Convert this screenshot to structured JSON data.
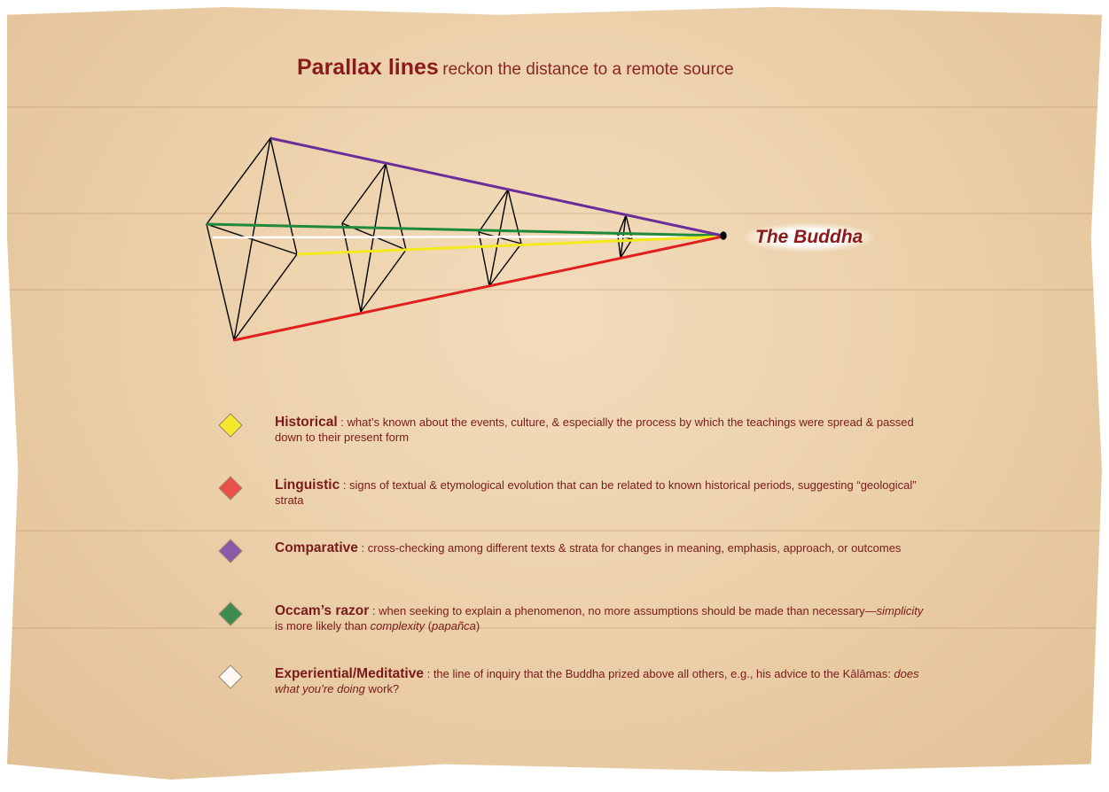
{
  "title": {
    "bold": "Parallax lines",
    "rest": "reckon the distance to a remote source"
  },
  "source_label": "The Buddha",
  "legend": [
    {
      "term": "Historical",
      "color": "#f6e62c",
      "segments": [
        {
          "text": " : what’s known about the events, culture, & especially the process by which the teachings were spread & passed down to their present form"
        }
      ]
    },
    {
      "term": "Linguistic",
      "color": "#e8504a",
      "segments": [
        {
          "text": " : signs of textual & etymological evolution that can be related to known historical periods, suggesting “geological” strata"
        }
      ]
    },
    {
      "term": "Comparative",
      "color": "#8a5aa8",
      "segments": [
        {
          "text": " : cross-checking among different texts & strata for changes in meaning, emphasis, approach, or outcomes"
        }
      ]
    },
    {
      "term": "Occam’s razor",
      "color": "#3f8a4e",
      "segments": [
        {
          "text": " : when seeking to explain a phenomenon, no more assumptions should be made than necessary—"
        },
        {
          "text": "simplicity",
          "italic": true
        },
        {
          "text": " is more likely than "
        },
        {
          "text": "complexity",
          "italic": true
        },
        {
          "text": " ("
        },
        {
          "text": "papañca",
          "italic": true
        },
        {
          "text": ")"
        }
      ]
    },
    {
      "term": "Experiential/Meditative",
      "color": "#fdf8f2",
      "segments": [
        {
          "text": " : the line of inquiry that the Buddha prized above all others, e.g., his advice to the Kālāmas: "
        },
        {
          "text": "does what you’re doing",
          "italic": true
        },
        {
          "text": " work?"
        }
      ]
    }
  ]
}
